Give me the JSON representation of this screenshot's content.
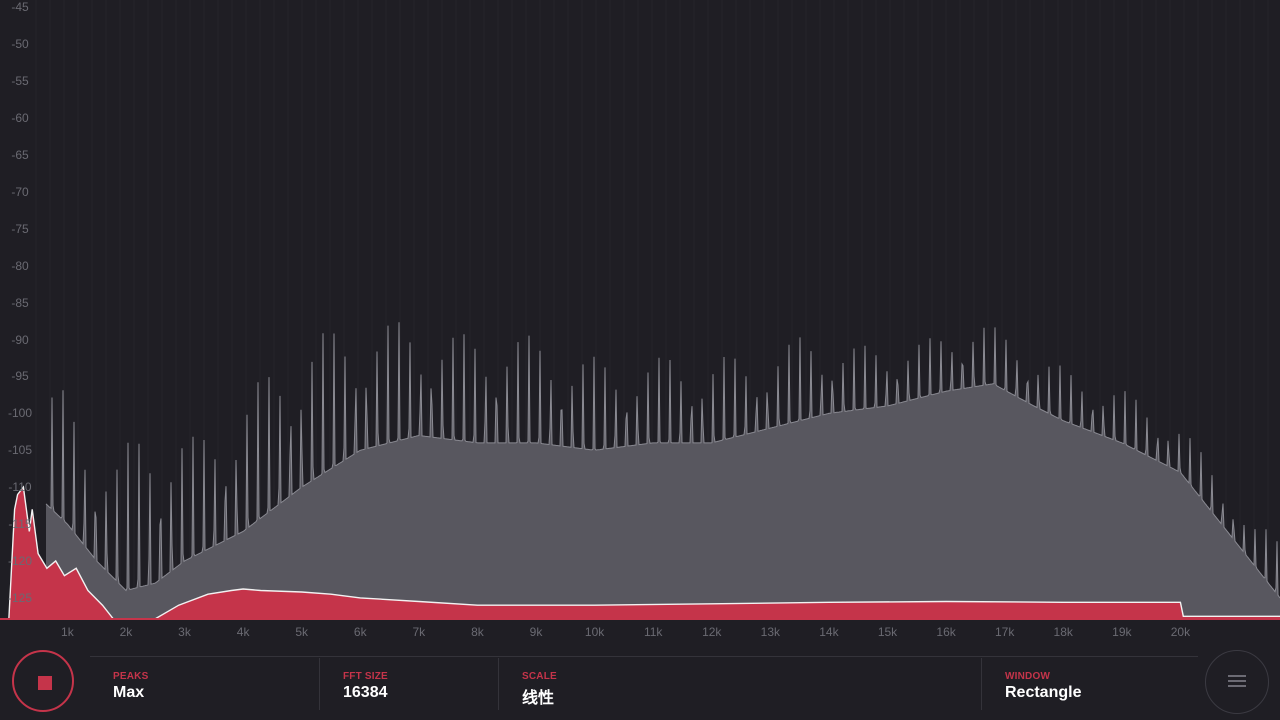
{
  "app": {
    "accent_color": "#c5344a",
    "background_color": "#1f1e24"
  },
  "y_axis": {
    "ticks": [
      "-45",
      "-50",
      "-55",
      "-60",
      "-65",
      "-70",
      "-75",
      "-80",
      "-85",
      "-90",
      "-95",
      "-100",
      "-105",
      "-110",
      "-115",
      "-120",
      "-125"
    ]
  },
  "x_axis": {
    "ticks": [
      "1k",
      "2k",
      "3k",
      "4k",
      "5k",
      "6k",
      "7k",
      "8k",
      "9k",
      "10k",
      "11k",
      "12k",
      "13k",
      "14k",
      "15k",
      "16k",
      "17k",
      "18k",
      "19k",
      "20k"
    ]
  },
  "chart_data": {
    "type": "area",
    "x_unit": "Hz",
    "y_unit": "dB",
    "ylim": [
      -128,
      -44
    ],
    "xlim": [
      -150,
      21700
    ],
    "grid": true,
    "series": [
      {
        "role": "peak-hold",
        "color": "#8a8a92",
        "fill": "#58575f",
        "envelope_x": [
          0,
          300,
          600,
          1000,
          1500,
          2000,
          2500,
          3000,
          4000,
          5000,
          6000,
          7000,
          8000,
          9000,
          10000,
          11000,
          12000,
          13000,
          14000,
          15000,
          16000,
          16800,
          17500,
          18000,
          19000,
          20000,
          21000,
          21700
        ],
        "envelope_y": [
          -112,
          -108,
          -112,
          -115,
          -120,
          -124,
          -123,
          -120,
          -116,
          -110,
          -105,
          -103,
          -104,
          -104,
          -105,
          -104,
          -104,
          -102,
          -100,
          -99,
          -97,
          -96,
          -99,
          -101,
          -104,
          -108,
          -118,
          -125
        ],
        "peaks_x": [
          100,
          200,
          900,
          1800,
          2400,
          3200,
          3600,
          4000,
          4500,
          4800,
          5200,
          5600,
          6100,
          6800,
          7300,
          7800,
          8400,
          8800,
          9200,
          9900,
          10300,
          10800,
          11300,
          11800,
          12300,
          12800,
          13600,
          14200,
          15200,
          15800,
          16500,
          16900,
          17300,
          18200,
          19000,
          20000,
          20600,
          21200
        ],
        "peaks_y": [
          -95,
          -96,
          -95,
          -105,
          -98,
          -102,
          -99,
          -96,
          -92,
          -89,
          -87,
          -87,
          -86,
          -86,
          -87,
          -88,
          -87,
          -88,
          -89,
          -91,
          -92,
          -92,
          -91,
          -92,
          -91,
          -92,
          -88,
          -90,
          -90,
          -89,
          -86,
          -88,
          -90,
          -94,
          -96,
          -101,
          -107,
          -115
        ]
      },
      {
        "role": "live",
        "color": "#f2f2f2",
        "fill": "#c5344a",
        "x": [
          0,
          100,
          150,
          250,
          350,
          400,
          500,
          650,
          800,
          950,
          1150,
          1350,
          1600,
          1800,
          2000,
          2200,
          2400,
          2900,
          3400,
          3800,
          4000,
          4300,
          5000,
          5500,
          6000,
          7000,
          8000,
          9000,
          10000,
          12000,
          14000,
          16000,
          18000,
          19000,
          20000,
          20050,
          21700
        ],
        "y": [
          -128,
          -113,
          -111,
          -110,
          -116,
          -113,
          -119,
          -121,
          -120,
          -122,
          -121,
          -124,
          -126,
          -128,
          -128.5,
          -128.5,
          -128.3,
          -126,
          -124.5,
          -124,
          -123.8,
          -124,
          -124.2,
          -124.5,
          -125,
          -125.5,
          -126,
          -126,
          -126,
          -125.8,
          -125.6,
          -125.5,
          -125.6,
          -125.6,
          -125.6,
          -127.5,
          -127.5
        ]
      }
    ]
  },
  "controls": {
    "record_button": {
      "state": "recording",
      "icon": "stop-icon"
    },
    "menu_button": {
      "icon": "menu-icon"
    },
    "peaks": {
      "caption": "PEAKS",
      "value": "Max"
    },
    "fft_size": {
      "caption": "FFT SIZE",
      "value": "16384"
    },
    "scale": {
      "caption": "SCALE",
      "value": "线性"
    },
    "window": {
      "caption": "WINDOW",
      "value": "Rectangle"
    }
  }
}
